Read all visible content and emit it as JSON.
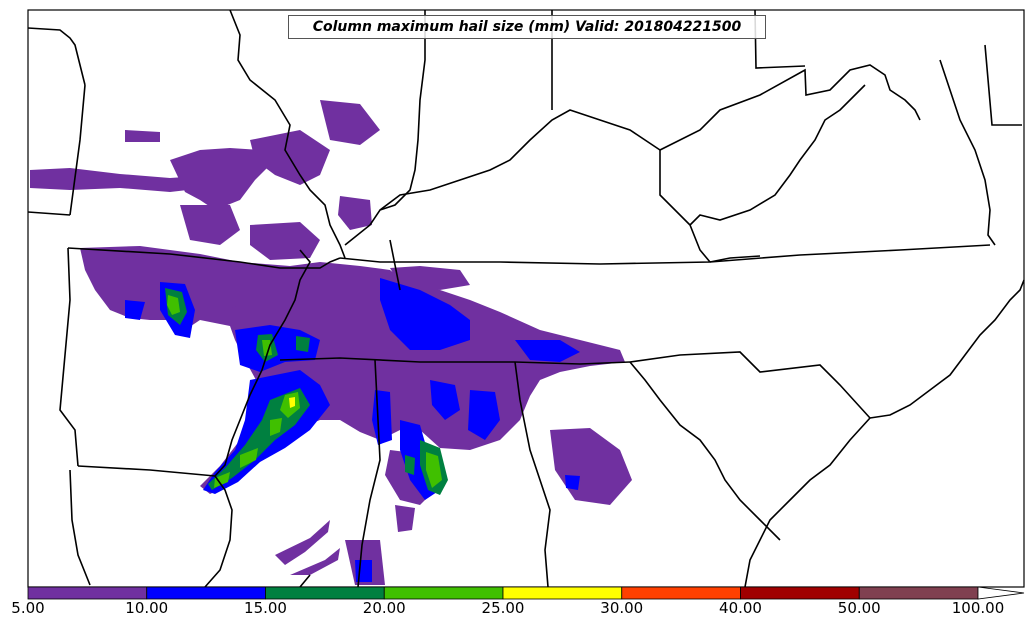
{
  "title": "Column maximum hail size (mm) Valid: 201804221500",
  "colorbar": {
    "bins": [
      {
        "from": 5,
        "to": 10,
        "color": "#7030a0"
      },
      {
        "from": 10,
        "to": 15,
        "color": "#0000ff"
      },
      {
        "from": 15,
        "to": 20,
        "color": "#008040"
      },
      {
        "from": 20,
        "to": 25,
        "color": "#40c000"
      },
      {
        "from": 25,
        "to": 30,
        "color": "#ffff00"
      },
      {
        "from": 30,
        "to": 40,
        "color": "#ff4000"
      },
      {
        "from": 40,
        "to": 50,
        "color": "#a00000"
      },
      {
        "from": 50,
        "to": 100,
        "color": "#804050"
      }
    ],
    "extend": "max",
    "tick_labels": [
      "5.00",
      "10.00",
      "15.00",
      "20.00",
      "25.00",
      "30.00",
      "40.00",
      "50.00",
      "100.00"
    ]
  }
}
